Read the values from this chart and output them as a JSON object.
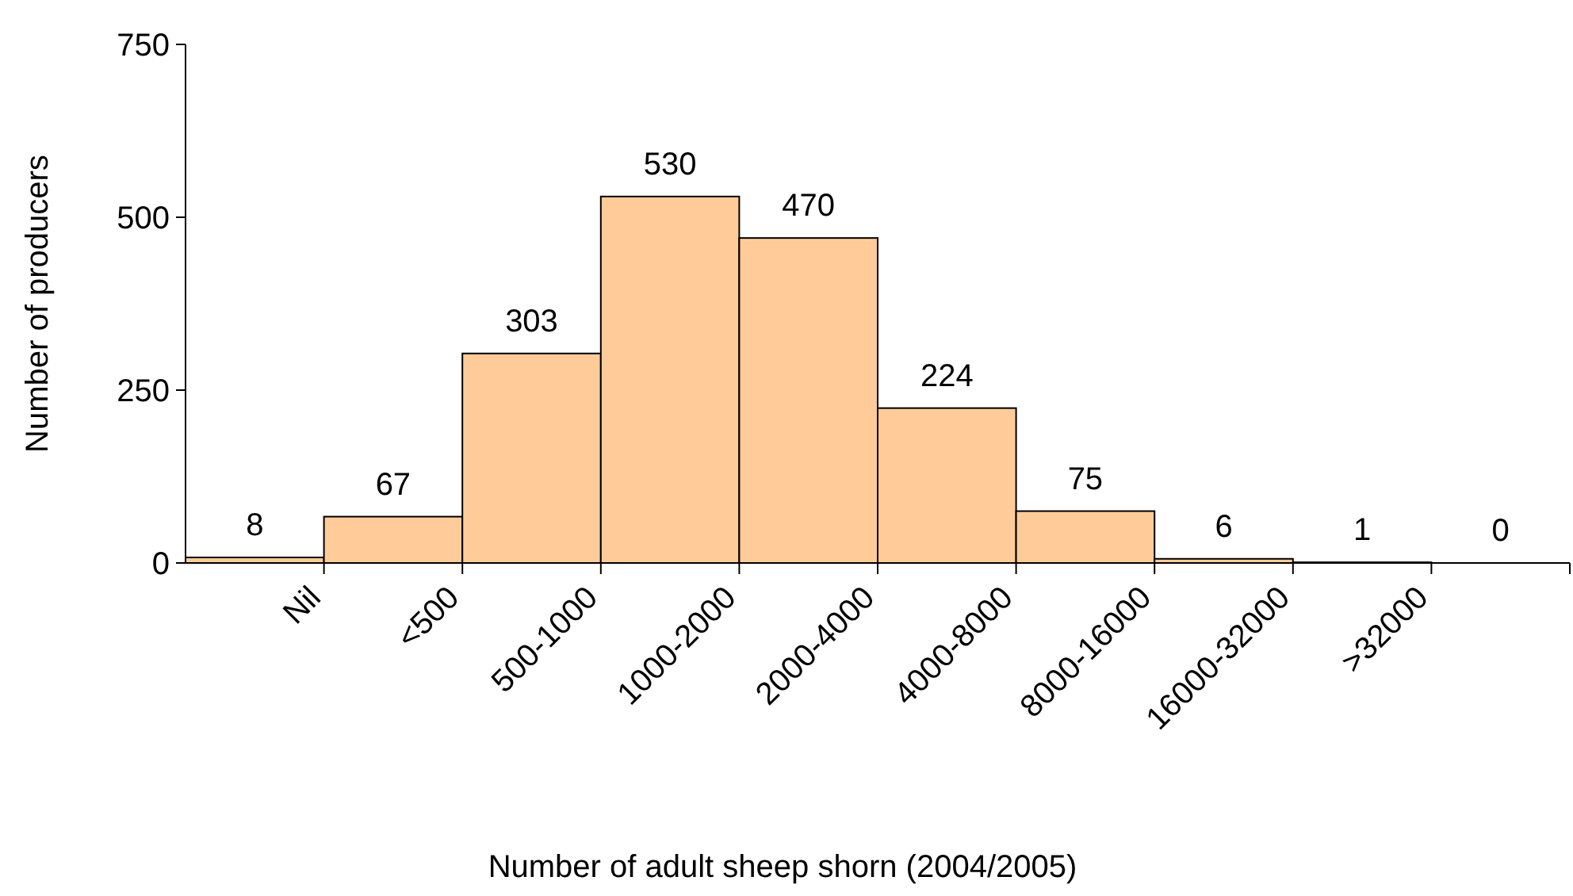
{
  "chart_data": {
    "type": "bar",
    "xlabel": "Number of adult sheep shorn (2004/2005)",
    "ylabel": "Number of producers",
    "categories": [
      "Nil",
      "<500",
      "500-1000",
      "1000-2000",
      "2000-4000",
      "4000-8000",
      "8000-16000",
      "16000-32000",
      ">32000",
      null
    ],
    "values": [
      8,
      67,
      303,
      530,
      470,
      224,
      75,
      6,
      1,
      0
    ],
    "color": "#ffcc99",
    "ylim": [
      0,
      750
    ],
    "yticks": [
      0,
      250,
      500,
      750
    ],
    "grid": false,
    "data_labels": true
  }
}
